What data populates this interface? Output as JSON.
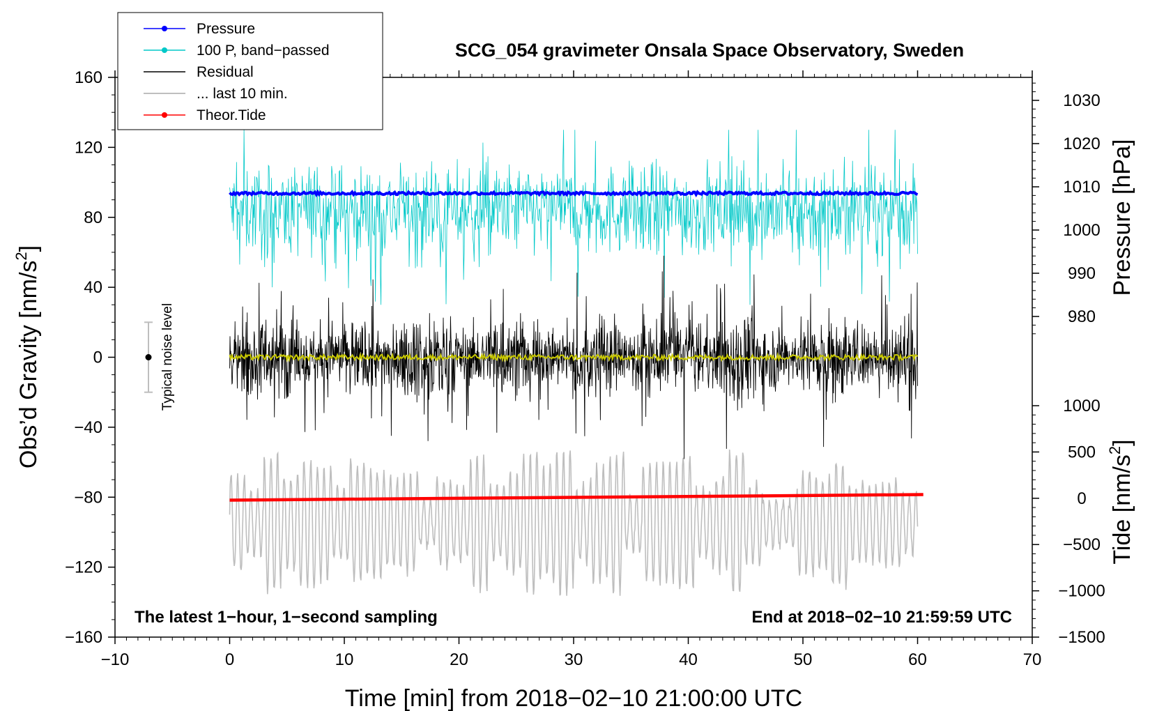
{
  "chart_data": {
    "type": "line",
    "title": "SCG_054 gravimeter Onsala Space Observatory, Sweden",
    "xlabel": "Time [min] from 2018−02−10 21:00:00 UTC",
    "ylabel_left_main": "Obs’d Gravity [nm/s",
    "ylabel_left_sup": "2",
    "ylabel_left_close": "]",
    "ylabel_right_pressure": "Pressure [hPa]",
    "ylabel_right_tide_main": "Tide [nm/s",
    "ylabel_right_tide_sup": "2",
    "ylabel_right_tide_close": "]",
    "xlim": [
      -10,
      70
    ],
    "ylim_gravity": [
      -160,
      160
    ],
    "ylim_pressure_ticks": [
      980,
      1030
    ],
    "ylim_tide": [
      -1500,
      1000
    ],
    "x_ticks": [
      "−10",
      "0",
      "10",
      "20",
      "30",
      "40",
      "50",
      "60",
      "70"
    ],
    "y_ticks_gravity": [
      "160",
      "120",
      "80",
      "40",
      "0",
      "−40",
      "−80",
      "−120",
      "−160"
    ],
    "y_ticks_pressure": [
      "1030",
      "1020",
      "1010",
      "1000",
      "990",
      "980"
    ],
    "y_ticks_tide": [
      "1000",
      "500",
      "0",
      "−500",
      "−1000",
      "−1500"
    ],
    "annotation_left": "The latest 1−hour, 1−second sampling",
    "annotation_right": "End at 2018−02−10 21:59:59 UTC",
    "noise_label": "Typical noise level",
    "noise_level_gravity": 20,
    "legend": [
      {
        "label": "Pressure",
        "color": "#0000ff",
        "marker": true
      },
      {
        "label": "100 P, band−passed",
        "color": "#00c8c8",
        "marker": true
      },
      {
        "label": "Residual",
        "color": "#000000",
        "marker": false
      },
      {
        "label": "... last 10 min.",
        "color": "#bebebe",
        "marker": false
      },
      {
        "label": "Theor.Tide",
        "color": "#ff0000",
        "marker": true
      }
    ],
    "series": [
      {
        "name": "Pressure",
        "axis": "pressure_hPa",
        "color": "#0000ff",
        "x_range": [
          0,
          60
        ],
        "mean": 1008.5,
        "peak_to_peak": 1
      },
      {
        "name": "100 P, band−passed",
        "axis": "gravity_nm_s2",
        "color": "#00c8c8",
        "x_range": [
          0,
          60
        ],
        "center": 80,
        "min": 30,
        "max": 130
      },
      {
        "name": "Residual",
        "axis": "gravity_nm_s2",
        "color": "#000000",
        "x_range": [
          0,
          60
        ],
        "center": 0,
        "min": -60,
        "max": 60
      },
      {
        "name": "Residual smoothed",
        "axis": "gravity_nm_s2",
        "color": "#c8c800",
        "x_range": [
          0,
          60
        ],
        "center": 0,
        "peak_to_peak": 3
      },
      {
        "name": "... last 10 min.",
        "axis": "gravity_nm_s2",
        "color": "#bebebe",
        "x_range": [
          0,
          60
        ],
        "center": -95,
        "min": -150,
        "max": -50
      },
      {
        "name": "Theor.Tide",
        "axis": "tide_nm_s2",
        "color": "#ff0000",
        "x": [
          0,
          60.5
        ],
        "y": [
          -20,
          40
        ]
      }
    ]
  }
}
